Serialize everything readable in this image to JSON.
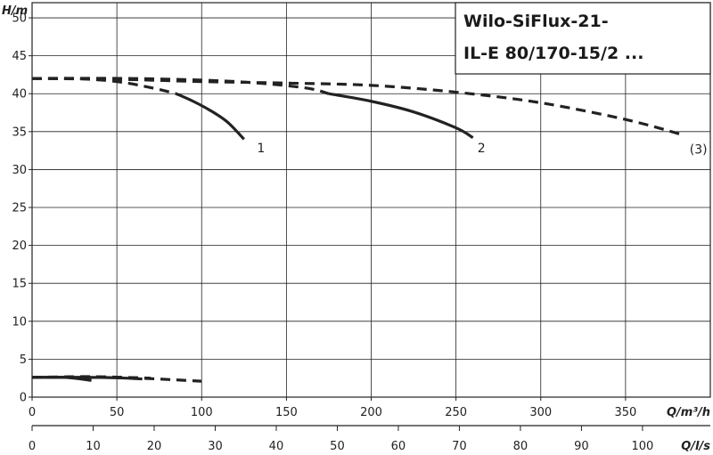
{
  "chart_data": {
    "type": "line",
    "title_lines": [
      "Wilo-SiFlux-21-",
      "IL-E 80/170-15/2 ..."
    ],
    "ylabel": "H/m",
    "xlabel": "Q/m³/h",
    "x2label": "Q/l/s",
    "xlim": [
      0,
      400
    ],
    "ylim": [
      0,
      52
    ],
    "x_ticks": [
      0,
      50,
      100,
      150,
      200,
      250,
      300,
      350
    ],
    "y_ticks": [
      0,
      5,
      10,
      15,
      20,
      25,
      30,
      35,
      40,
      45,
      50
    ],
    "x2_ticks": [
      0,
      10,
      20,
      30,
      40,
      50,
      60,
      70,
      80,
      90,
      100
    ],
    "grid": true,
    "series": [
      {
        "name": "1",
        "style": "solid",
        "color": "#222222",
        "label_at": [
          135,
          32.3
        ],
        "points": [
          [
            85,
            40.0
          ],
          [
            95,
            39.0
          ],
          [
            105,
            37.8
          ],
          [
            115,
            36.3
          ],
          [
            125,
            34.0
          ]
        ]
      },
      {
        "name": "2",
        "style": "solid",
        "color": "#222222",
        "label_at": [
          265,
          32.3
        ],
        "points": [
          [
            175,
            40.0
          ],
          [
            200,
            39.0
          ],
          [
            225,
            37.6
          ],
          [
            250,
            35.5
          ],
          [
            260,
            34.2
          ]
        ]
      },
      {
        "name": "(3)",
        "style": "dashed",
        "color": "#222222",
        "label_at": [
          393,
          32.1
        ],
        "points": [
          [
            0,
            42.0
          ],
          [
            50,
            41.9
          ],
          [
            100,
            41.6
          ],
          [
            150,
            41.4
          ],
          [
            200,
            41.1
          ],
          [
            250,
            40.2
          ],
          [
            300,
            38.8
          ],
          [
            350,
            36.6
          ],
          [
            385,
            34.5
          ]
        ]
      },
      {
        "name": "",
        "style": "dashed",
        "color": "#222222",
        "points": [
          [
            0,
            42.0
          ],
          [
            25,
            42.0
          ],
          [
            50,
            41.6
          ],
          [
            70,
            40.8
          ],
          [
            85,
            40.0
          ]
        ]
      },
      {
        "name": "",
        "style": "dashed",
        "color": "#222222",
        "points": [
          [
            0,
            42.0
          ],
          [
            60,
            42.0
          ],
          [
            120,
            41.6
          ],
          [
            160,
            40.8
          ],
          [
            175,
            40.0
          ]
        ]
      },
      {
        "name": "",
        "style": "solid",
        "color": "#222222",
        "points": [
          [
            0,
            2.6
          ],
          [
            20,
            2.6
          ],
          [
            35,
            2.2
          ]
        ]
      },
      {
        "name": "",
        "style": "solid",
        "color": "#222222",
        "points": [
          [
            0,
            2.6
          ],
          [
            40,
            2.6
          ],
          [
            65,
            2.4
          ]
        ]
      },
      {
        "name": "",
        "style": "dashed",
        "color": "#222222",
        "points": [
          [
            0,
            2.6
          ],
          [
            35,
            2.7
          ],
          [
            70,
            2.5
          ]
        ]
      },
      {
        "name": "",
        "style": "dashed",
        "color": "#222222",
        "points": [
          [
            0,
            2.6
          ],
          [
            50,
            2.6
          ],
          [
            100,
            2.1
          ]
        ]
      }
    ]
  }
}
